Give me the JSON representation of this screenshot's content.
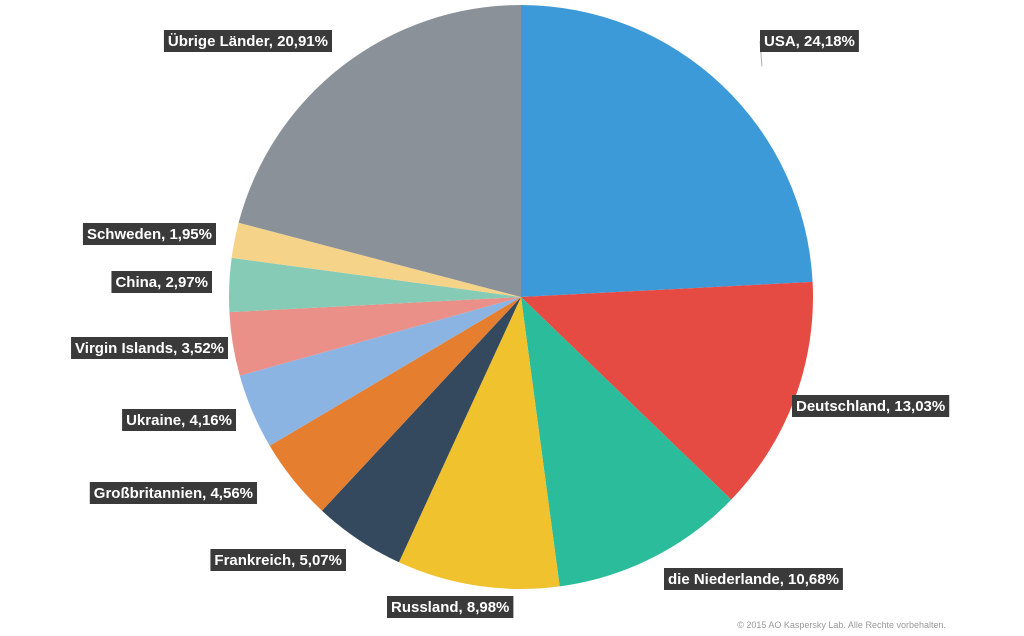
{
  "chart_data": {
    "type": "pie",
    "title": "",
    "start_angle_deg": 0,
    "direction": "clockwise",
    "slices": [
      {
        "label": "USA",
        "value": 24.18,
        "display": "USA, 24,18%",
        "color": "#3c9ad9"
      },
      {
        "label": "Deutschland",
        "value": 13.03,
        "display": "Deutschland, 13,03%",
        "color": "#e54b42"
      },
      {
        "label": "die Niederlande",
        "value": 10.68,
        "display": "die Niederlande, 10,68%",
        "color": "#2bbc9b"
      },
      {
        "label": "Russland",
        "value": 8.98,
        "display": "Russland, 8,98%",
        "color": "#f0c22e"
      },
      {
        "label": "Frankreich",
        "value": 5.07,
        "display": "Frankreich, 5,07%",
        "color": "#34495e"
      },
      {
        "label": "Großbritannien",
        "value": 4.56,
        "display": "Großbritannien, 4,56%",
        "color": "#e67e30"
      },
      {
        "label": "Ukraine",
        "value": 4.16,
        "display": "Ukraine, 4,16%",
        "color": "#8bb4e3"
      },
      {
        "label": "Virgin Islands",
        "value": 3.52,
        "display": "Virgin Islands, 3,52%",
        "color": "#ea9089"
      },
      {
        "label": "China",
        "value": 2.97,
        "display": "China, 2,97%",
        "color": "#86cbb5"
      },
      {
        "label": "Schweden",
        "value": 1.95,
        "display": "Schweden, 1,95%",
        "color": "#f5d48a"
      },
      {
        "label": "Übrige Länder",
        "value": 20.91,
        "display": "Übrige Länder, 20,91%",
        "color": "#8b9199"
      }
    ]
  },
  "footer": {
    "copyright": "© 2015 AO Kaspersky Lab. Alle Rechte vorbehalten."
  }
}
